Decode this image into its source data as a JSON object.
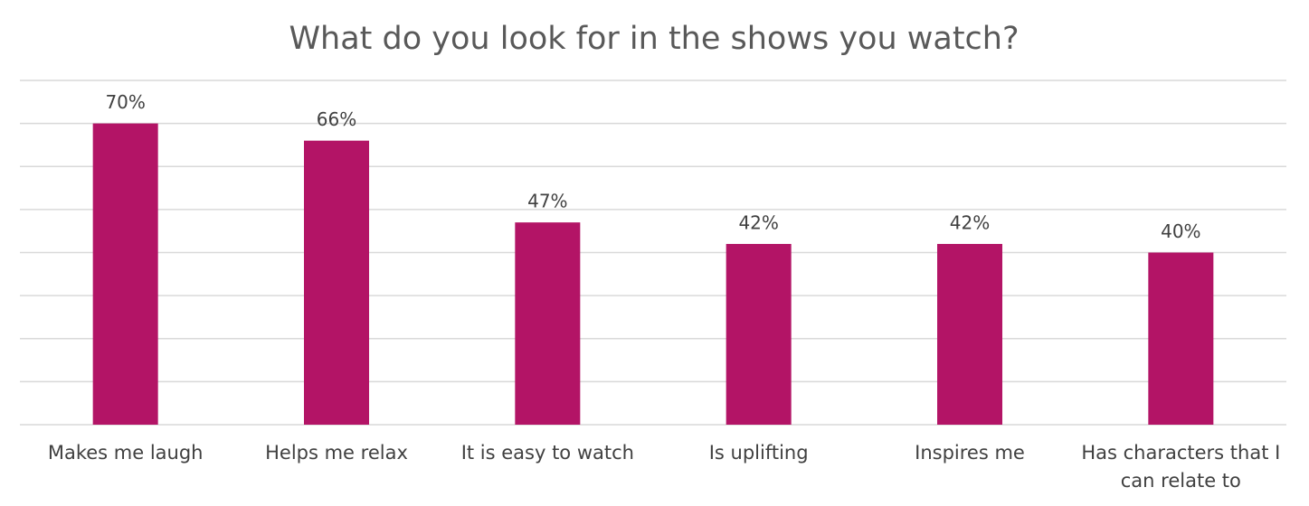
{
  "chart_data": {
    "type": "bar",
    "title": "What do you look for in the shows you watch?",
    "categories": [
      "Makes me laugh",
      "Helps me relax",
      "It is easy to watch",
      "Is uplifting",
      "Inspires me",
      "Has characters that I can relate to"
    ],
    "values": [
      70,
      66,
      47,
      42,
      42,
      40
    ],
    "value_labels": [
      "70%",
      "66%",
      "47%",
      "42%",
      "42%",
      "40%"
    ],
    "color": "#b31466",
    "ylim": [
      0,
      80
    ],
    "yticks": [
      0,
      10,
      20,
      30,
      40,
      50,
      60,
      70,
      80
    ],
    "grid": true
  }
}
